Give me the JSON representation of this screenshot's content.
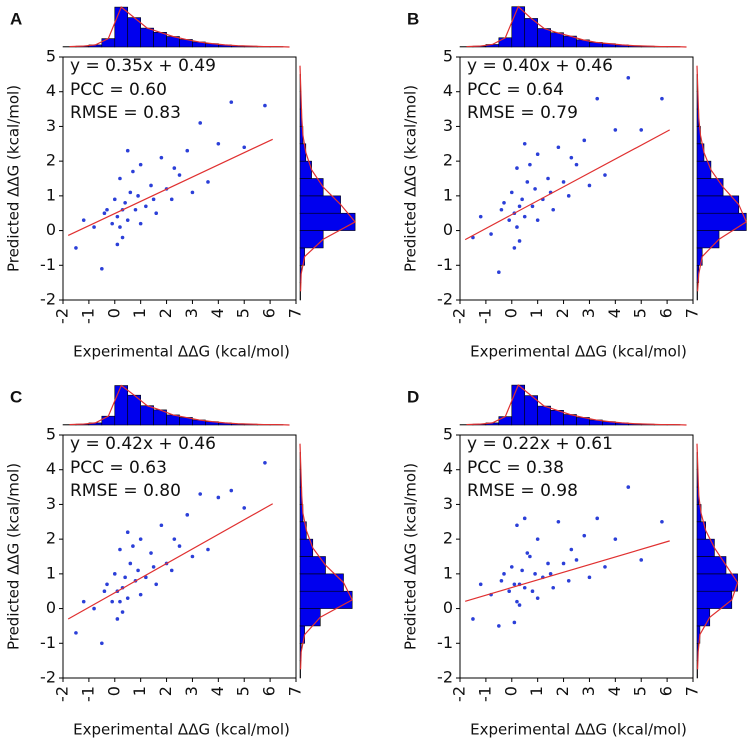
{
  "chart_data": [
    {
      "type": "scatter",
      "panel": "A",
      "equation": "y = 0.35x + 0.49",
      "pcc": "PCC = 0.60",
      "rmse": "RMSE = 0.83",
      "x_label": "Experimental ΔΔG (kcal/mol)",
      "y_label": "Predicted ΔΔG (kcal/mol)",
      "xlim": [
        -2,
        7
      ],
      "ylim": [
        -2,
        5
      ],
      "xticks": [
        -2,
        -1,
        0,
        1,
        2,
        3,
        4,
        5,
        6,
        7
      ],
      "yticks": [
        -2,
        -1,
        0,
        1,
        2,
        3,
        4,
        5
      ],
      "color": "#2b3fd8",
      "fit_color": "#e03030",
      "hist_color": "#0000ee",
      "x": [
        -1.5,
        -1.2,
        -0.8,
        -0.5,
        -0.3,
        -0.1,
        0,
        0.1,
        0.2,
        0.3,
        0.4,
        0.5,
        0.6,
        0.8,
        1,
        1.2,
        1.4,
        1.6,
        1.8,
        2,
        2.2,
        2.5,
        2.8,
        3,
        3.3,
        3.6,
        4,
        4.5,
        5,
        5.8,
        0.2,
        0.5,
        1,
        0.1,
        -0.4,
        0.7,
        1.5,
        2.3,
        0.3,
        0.9
      ],
      "y": [
        -0.5,
        0.3,
        0.1,
        -1.1,
        0.6,
        0.2,
        0.9,
        0.4,
        1.5,
        -0.2,
        0.8,
        0.3,
        1.1,
        0.6,
        1.9,
        0.7,
        1.3,
        0.5,
        2.1,
        1.2,
        0.9,
        1.6,
        2.3,
        1.1,
        3.1,
        1.4,
        2.5,
        3.7,
        2.4,
        3.6,
        0.1,
        2.3,
        0.2,
        -0.4,
        0.5,
        1.7,
        0.9,
        1.8,
        0.6,
        1.0
      ],
      "fit_line": {
        "x": [
          -1.8,
          6.1
        ],
        "y": [
          -0.14,
          2.63
        ]
      },
      "hist_lim": [
        0,
        100
      ],
      "x_hist": {
        "bins": [
          -2,
          -1.5,
          -1,
          -0.5,
          0,
          0.5,
          1,
          1.5,
          2,
          2.5,
          3,
          3.5,
          4,
          4.5,
          5,
          5.5,
          6,
          6.5,
          7
        ],
        "counts": [
          1,
          2,
          5,
          20,
          95,
          70,
          45,
          35,
          25,
          18,
          12,
          8,
          5,
          3,
          2,
          1,
          1,
          0
        ]
      },
      "y_hist": {
        "bins": [
          -2,
          -1.5,
          -1,
          -0.5,
          0,
          0.5,
          1,
          1.5,
          2,
          2.5,
          3,
          3.5,
          4,
          4.5,
          5
        ],
        "counts": [
          1,
          2,
          8,
          40,
          95,
          70,
          40,
          20,
          10,
          5,
          3,
          2,
          1,
          0
        ]
      }
    },
    {
      "type": "scatter",
      "panel": "B",
      "equation": "y = 0.40x + 0.46",
      "pcc": "PCC = 0.64",
      "rmse": "RMSE = 0.79",
      "x_label": "Experimental ΔΔG (kcal/mol)",
      "y_label": "Predicted ΔΔG (kcal/mol)",
      "xlim": [
        -2,
        7
      ],
      "ylim": [
        -2,
        5
      ],
      "xticks": [
        -2,
        -1,
        0,
        1,
        2,
        3,
        4,
        5,
        6,
        7
      ],
      "yticks": [
        -2,
        -1,
        0,
        1,
        2,
        3,
        4,
        5
      ],
      "color": "#2b3fd8",
      "fit_color": "#e03030",
      "hist_color": "#0000ee",
      "x": [
        -1.5,
        -1.2,
        -0.8,
        -0.5,
        -0.3,
        -0.1,
        0,
        0.1,
        0.2,
        0.3,
        0.4,
        0.5,
        0.6,
        0.8,
        1,
        1.2,
        1.4,
        1.6,
        1.8,
        2,
        2.2,
        2.5,
        2.8,
        3,
        3.3,
        3.6,
        4,
        4.5,
        5,
        5.8,
        0.2,
        0.5,
        1,
        0.1,
        -0.4,
        0.7,
        1.5,
        2.3,
        0.3,
        0.9
      ],
      "y": [
        -0.2,
        0.4,
        -0.1,
        -1.2,
        0.8,
        0.3,
        1.1,
        0.5,
        1.8,
        -0.3,
        0.9,
        0.4,
        1.4,
        0.7,
        2.2,
        0.9,
        1.5,
        0.6,
        2.4,
        1.4,
        1.0,
        1.9,
        2.6,
        1.3,
        3.8,
        1.6,
        2.9,
        4.4,
        2.9,
        3.8,
        0.1,
        2.5,
        0.3,
        -0.5,
        0.6,
        1.9,
        1.1,
        2.1,
        0.7,
        1.2
      ],
      "fit_line": {
        "x": [
          -1.8,
          6.1
        ],
        "y": [
          -0.26,
          2.9
        ]
      },
      "hist_lim": [
        0,
        100
      ],
      "x_hist": {
        "bins": [
          -2,
          -1.5,
          -1,
          -0.5,
          0,
          0.5,
          1,
          1.5,
          2,
          2.5,
          3,
          3.5,
          4,
          4.5,
          5,
          5.5,
          6,
          6.5,
          7
        ],
        "counts": [
          1,
          2,
          6,
          22,
          96,
          68,
          44,
          34,
          26,
          17,
          11,
          8,
          5,
          3,
          2,
          1,
          1,
          0
        ]
      },
      "y_hist": {
        "bins": [
          -2,
          -1.5,
          -1,
          -0.5,
          0,
          0.5,
          1,
          1.5,
          2,
          2.5,
          3,
          3.5,
          4,
          4.5,
          5
        ],
        "counts": [
          1,
          3,
          9,
          38,
          85,
          72,
          45,
          24,
          12,
          6,
          3,
          2,
          1,
          0
        ]
      }
    },
    {
      "type": "scatter",
      "panel": "C",
      "equation": "y = 0.42x + 0.46",
      "pcc": "PCC = 0.63",
      "rmse": "RMSE = 0.80",
      "x_label": "Experimental ΔΔG (kcal/mol)",
      "y_label": "Predicted ΔΔG (kcal/mol)",
      "xlim": [
        -2,
        7
      ],
      "ylim": [
        -2,
        5
      ],
      "xticks": [
        -2,
        -1,
        0,
        1,
        2,
        3,
        4,
        5,
        6,
        7
      ],
      "yticks": [
        -2,
        -1,
        0,
        1,
        2,
        3,
        4,
        5
      ],
      "color": "#2b3fd8",
      "fit_color": "#e03030",
      "hist_color": "#0000ee",
      "x": [
        -1.5,
        -1.2,
        -0.8,
        -0.5,
        -0.3,
        -0.1,
        0,
        0.1,
        0.2,
        0.3,
        0.4,
        0.5,
        0.6,
        0.8,
        1,
        1.2,
        1.4,
        1.6,
        1.8,
        2,
        2.2,
        2.5,
        2.8,
        3,
        3.3,
        3.6,
        4,
        4.5,
        5,
        5.8,
        0.2,
        0.5,
        1,
        0.1,
        -0.4,
        0.7,
        1.5,
        2.3,
        0.3,
        0.9
      ],
      "y": [
        -0.7,
        0.2,
        0.0,
        -1.0,
        0.7,
        0.2,
        1.0,
        0.5,
        1.7,
        -0.1,
        0.9,
        0.3,
        1.3,
        0.8,
        2.0,
        0.9,
        1.6,
        0.7,
        2.4,
        1.3,
        1.1,
        1.8,
        2.7,
        1.5,
        3.3,
        1.7,
        3.2,
        3.4,
        2.9,
        4.2,
        0.2,
        2.2,
        0.4,
        -0.3,
        0.5,
        1.8,
        1.2,
        2.0,
        0.6,
        1.1
      ],
      "fit_line": {
        "x": [
          -1.8,
          6.1
        ],
        "y": [
          -0.3,
          3.02
        ]
      },
      "hist_lim": [
        0,
        100
      ],
      "x_hist": {
        "bins": [
          -2,
          -1.5,
          -1,
          -0.5,
          0,
          0.5,
          1,
          1.5,
          2,
          2.5,
          3,
          3.5,
          4,
          4.5,
          5,
          5.5,
          6,
          6.5,
          7
        ],
        "counts": [
          1,
          2,
          5,
          21,
          94,
          71,
          46,
          36,
          24,
          18,
          12,
          8,
          5,
          3,
          2,
          1,
          1,
          0
        ]
      },
      "y_hist": {
        "bins": [
          -2,
          -1.5,
          -1,
          -0.5,
          0,
          0.5,
          1,
          1.5,
          2,
          2.5,
          3,
          3.5,
          4,
          4.5,
          5
        ],
        "counts": [
          1,
          2,
          8,
          35,
          90,
          75,
          44,
          22,
          11,
          5,
          3,
          2,
          1,
          0
        ]
      }
    },
    {
      "type": "scatter",
      "panel": "D",
      "equation": "y = 0.22x + 0.61",
      "pcc": "PCC = 0.38",
      "rmse": "RMSE = 0.98",
      "x_label": "Experimental ΔΔG (kcal/mol)",
      "y_label": "Predicted ΔΔG (kcal/mol)",
      "xlim": [
        -2,
        7
      ],
      "ylim": [
        -2,
        5
      ],
      "xticks": [
        -2,
        -1,
        0,
        1,
        2,
        3,
        4,
        5,
        6,
        7
      ],
      "yticks": [
        -2,
        -1,
        0,
        1,
        2,
        3,
        4,
        5
      ],
      "color": "#2b3fd8",
      "fit_color": "#e03030",
      "hist_color": "#0000ee",
      "x": [
        -1.5,
        -1.2,
        -0.8,
        -0.5,
        -0.3,
        -0.1,
        0,
        0.1,
        0.2,
        0.3,
        0.4,
        0.5,
        0.6,
        0.8,
        1,
        1.2,
        1.4,
        1.6,
        1.8,
        2,
        2.2,
        2.5,
        2.8,
        3,
        3.3,
        3.6,
        4,
        4.5,
        5,
        5.8,
        0.2,
        0.5,
        1,
        0.1,
        -0.4,
        0.7,
        1.5,
        2.3,
        0.3,
        0.9
      ],
      "y": [
        -0.3,
        0.7,
        0.4,
        -0.5,
        1.0,
        0.5,
        1.2,
        0.7,
        2.4,
        0.1,
        1.1,
        0.6,
        1.6,
        0.5,
        2.0,
        0.9,
        1.3,
        0.6,
        2.5,
        1.3,
        0.8,
        1.4,
        2.1,
        0.9,
        2.6,
        1.2,
        2.0,
        3.5,
        1.4,
        2.5,
        0.2,
        2.6,
        0.3,
        -0.4,
        0.8,
        1.5,
        1.0,
        1.7,
        0.7,
        1.0
      ],
      "fit_line": {
        "x": [
          -1.8,
          6.1
        ],
        "y": [
          0.21,
          1.95
        ]
      },
      "hist_lim": [
        0,
        100
      ],
      "x_hist": {
        "bins": [
          -2,
          -1.5,
          -1,
          -0.5,
          0,
          0.5,
          1,
          1.5,
          2,
          2.5,
          3,
          3.5,
          4,
          4.5,
          5,
          5.5,
          6,
          6.5,
          7
        ],
        "counts": [
          1,
          2,
          5,
          20,
          95,
          70,
          45,
          35,
          25,
          18,
          12,
          8,
          5,
          3,
          2,
          1,
          1,
          0
        ]
      },
      "y_hist": {
        "bins": [
          -2,
          -1.5,
          -1,
          -0.5,
          0,
          0.5,
          1,
          1.5,
          2,
          2.5,
          3,
          3.5,
          4,
          4.5,
          5
        ],
        "counts": [
          1,
          2,
          5,
          22,
          60,
          70,
          50,
          30,
          15,
          7,
          3,
          2,
          1,
          0
        ]
      }
    }
  ]
}
